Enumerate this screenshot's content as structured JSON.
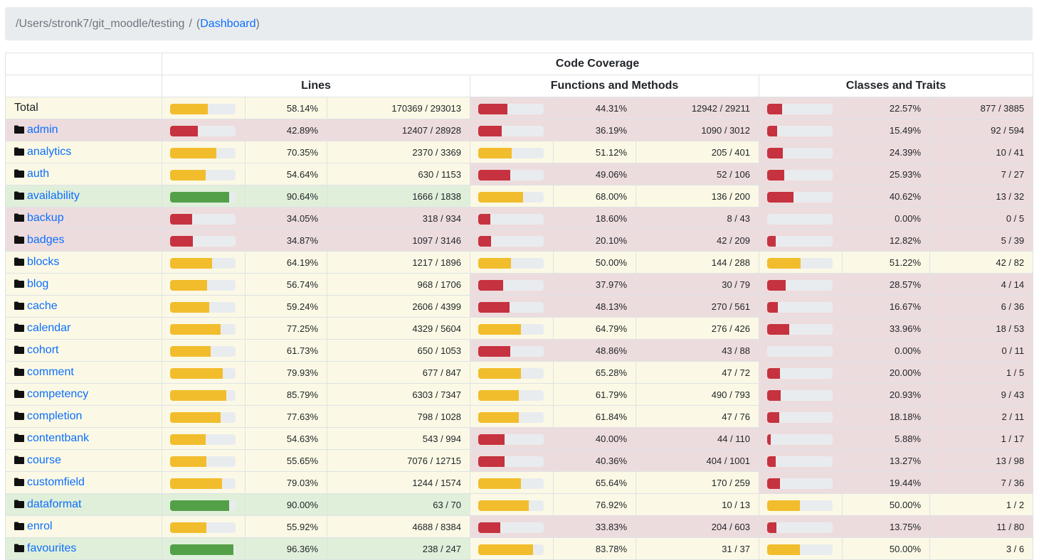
{
  "breadcrumb": {
    "path": "/Users/stronk7/git_moodle/testing",
    "separator": "/",
    "link": "Dashboard"
  },
  "table": {
    "group_header": "Code Coverage",
    "columns": [
      "Lines",
      "Functions and Methods",
      "Classes and Traits"
    ]
  },
  "colors": {
    "danger": "#c6323f",
    "warning": "#f2bd2c",
    "success": "#53a048"
  },
  "rows": [
    {
      "name": "Total",
      "is_total": true,
      "lines": {
        "pct": "58.14%",
        "count": "170369 / 293013",
        "v": 58.14
      },
      "funcs": {
        "pct": "44.31%",
        "count": "12942 / 29211",
        "v": 44.31
      },
      "classes": {
        "pct": "22.57%",
        "count": "877 / 3885",
        "v": 22.57
      }
    },
    {
      "name": "admin",
      "lines": {
        "pct": "42.89%",
        "count": "12407 / 28928",
        "v": 42.89
      },
      "funcs": {
        "pct": "36.19%",
        "count": "1090 / 3012",
        "v": 36.19
      },
      "classes": {
        "pct": "15.49%",
        "count": "92 / 594",
        "v": 15.49
      }
    },
    {
      "name": "analytics",
      "lines": {
        "pct": "70.35%",
        "count": "2370 / 3369",
        "v": 70.35
      },
      "funcs": {
        "pct": "51.12%",
        "count": "205 / 401",
        "v": 51.12
      },
      "classes": {
        "pct": "24.39%",
        "count": "10 / 41",
        "v": 24.39
      }
    },
    {
      "name": "auth",
      "lines": {
        "pct": "54.64%",
        "count": "630 / 1153",
        "v": 54.64
      },
      "funcs": {
        "pct": "49.06%",
        "count": "52 / 106",
        "v": 49.06
      },
      "classes": {
        "pct": "25.93%",
        "count": "7 / 27",
        "v": 25.93
      }
    },
    {
      "name": "availability",
      "lines": {
        "pct": "90.64%",
        "count": "1666 / 1838",
        "v": 90.64
      },
      "funcs": {
        "pct": "68.00%",
        "count": "136 / 200",
        "v": 68.0
      },
      "classes": {
        "pct": "40.62%",
        "count": "13 / 32",
        "v": 40.62
      }
    },
    {
      "name": "backup",
      "lines": {
        "pct": "34.05%",
        "count": "318 / 934",
        "v": 34.05
      },
      "funcs": {
        "pct": "18.60%",
        "count": "8 / 43",
        "v": 18.6
      },
      "classes": {
        "pct": "0.00%",
        "count": "0 / 5",
        "v": 0
      }
    },
    {
      "name": "badges",
      "lines": {
        "pct": "34.87%",
        "count": "1097 / 3146",
        "v": 34.87
      },
      "funcs": {
        "pct": "20.10%",
        "count": "42 / 209",
        "v": 20.1
      },
      "classes": {
        "pct": "12.82%",
        "count": "5 / 39",
        "v": 12.82
      }
    },
    {
      "name": "blocks",
      "lines": {
        "pct": "64.19%",
        "count": "1217 / 1896",
        "v": 64.19
      },
      "funcs": {
        "pct": "50.00%",
        "count": "144 / 288",
        "v": 50.0
      },
      "classes": {
        "pct": "51.22%",
        "count": "42 / 82",
        "v": 51.22
      }
    },
    {
      "name": "blog",
      "lines": {
        "pct": "56.74%",
        "count": "968 / 1706",
        "v": 56.74
      },
      "funcs": {
        "pct": "37.97%",
        "count": "30 / 79",
        "v": 37.97
      },
      "classes": {
        "pct": "28.57%",
        "count": "4 / 14",
        "v": 28.57
      }
    },
    {
      "name": "cache",
      "lines": {
        "pct": "59.24%",
        "count": "2606 / 4399",
        "v": 59.24
      },
      "funcs": {
        "pct": "48.13%",
        "count": "270 / 561",
        "v": 48.13
      },
      "classes": {
        "pct": "16.67%",
        "count": "6 / 36",
        "v": 16.67
      }
    },
    {
      "name": "calendar",
      "lines": {
        "pct": "77.25%",
        "count": "4329 / 5604",
        "v": 77.25
      },
      "funcs": {
        "pct": "64.79%",
        "count": "276 / 426",
        "v": 64.79
      },
      "classes": {
        "pct": "33.96%",
        "count": "18 / 53",
        "v": 33.96
      }
    },
    {
      "name": "cohort",
      "lines": {
        "pct": "61.73%",
        "count": "650 / 1053",
        "v": 61.73
      },
      "funcs": {
        "pct": "48.86%",
        "count": "43 / 88",
        "v": 48.86
      },
      "classes": {
        "pct": "0.00%",
        "count": "0 / 11",
        "v": 0
      }
    },
    {
      "name": "comment",
      "lines": {
        "pct": "79.93%",
        "count": "677 / 847",
        "v": 79.93
      },
      "funcs": {
        "pct": "65.28%",
        "count": "47 / 72",
        "v": 65.28
      },
      "classes": {
        "pct": "20.00%",
        "count": "1 / 5",
        "v": 20.0
      }
    },
    {
      "name": "competency",
      "lines": {
        "pct": "85.79%",
        "count": "6303 / 7347",
        "v": 85.79
      },
      "funcs": {
        "pct": "61.79%",
        "count": "490 / 793",
        "v": 61.79
      },
      "classes": {
        "pct": "20.93%",
        "count": "9 / 43",
        "v": 20.93
      }
    },
    {
      "name": "completion",
      "lines": {
        "pct": "77.63%",
        "count": "798 / 1028",
        "v": 77.63
      },
      "funcs": {
        "pct": "61.84%",
        "count": "47 / 76",
        "v": 61.84
      },
      "classes": {
        "pct": "18.18%",
        "count": "2 / 11",
        "v": 18.18
      }
    },
    {
      "name": "contentbank",
      "lines": {
        "pct": "54.63%",
        "count": "543 / 994",
        "v": 54.63
      },
      "funcs": {
        "pct": "40.00%",
        "count": "44 / 110",
        "v": 40.0
      },
      "classes": {
        "pct": "5.88%",
        "count": "1 / 17",
        "v": 5.88
      }
    },
    {
      "name": "course",
      "lines": {
        "pct": "55.65%",
        "count": "7076 / 12715",
        "v": 55.65
      },
      "funcs": {
        "pct": "40.36%",
        "count": "404 / 1001",
        "v": 40.36
      },
      "classes": {
        "pct": "13.27%",
        "count": "13 / 98",
        "v": 13.27
      }
    },
    {
      "name": "customfield",
      "lines": {
        "pct": "79.03%",
        "count": "1244 / 1574",
        "v": 79.03
      },
      "funcs": {
        "pct": "65.64%",
        "count": "170 / 259",
        "v": 65.64
      },
      "classes": {
        "pct": "19.44%",
        "count": "7 / 36",
        "v": 19.44
      }
    },
    {
      "name": "dataformat",
      "lines": {
        "pct": "90.00%",
        "count": "63 / 70",
        "v": 90.0
      },
      "funcs": {
        "pct": "76.92%",
        "count": "10 / 13",
        "v": 76.92
      },
      "classes": {
        "pct": "50.00%",
        "count": "1 / 2",
        "v": 50.0
      }
    },
    {
      "name": "enrol",
      "lines": {
        "pct": "55.92%",
        "count": "4688 / 8384",
        "v": 55.92
      },
      "funcs": {
        "pct": "33.83%",
        "count": "204 / 603",
        "v": 33.83
      },
      "classes": {
        "pct": "13.75%",
        "count": "11 / 80",
        "v": 13.75
      }
    },
    {
      "name": "favourites",
      "lines": {
        "pct": "96.36%",
        "count": "238 / 247",
        "v": 96.36
      },
      "funcs": {
        "pct": "83.78%",
        "count": "31 / 37",
        "v": 83.78
      },
      "classes": {
        "pct": "50.00%",
        "count": "3 / 6",
        "v": 50.0
      }
    }
  ]
}
